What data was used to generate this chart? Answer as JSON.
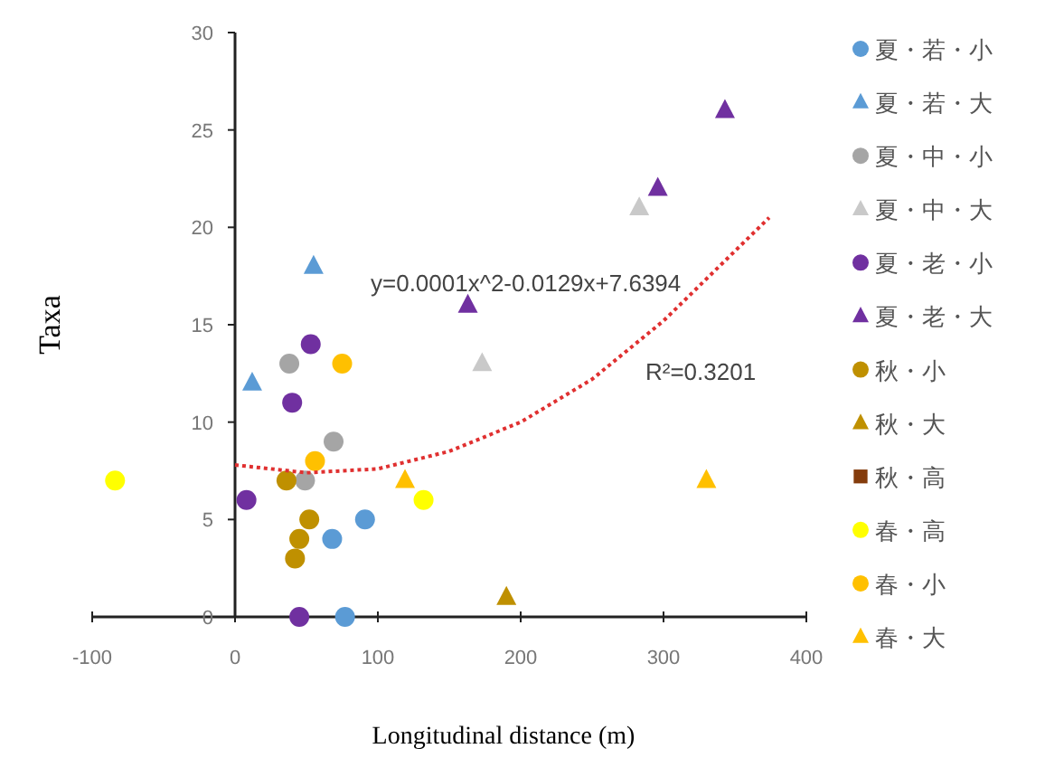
{
  "chart_data": {
    "type": "scatter",
    "xlabel": "Longitudinal distance (m)",
    "ylabel": "Taxa",
    "xlim": [
      -100,
      400
    ],
    "ylim": [
      0,
      30
    ],
    "xticks": [
      -100,
      0,
      100,
      200,
      300,
      400
    ],
    "yticks": [
      0,
      5,
      10,
      15,
      20,
      25,
      30
    ],
    "grid": false,
    "legend": "right",
    "annotations": [
      "y=0.0001x^2-0.0129x+7.6394",
      "R²=0.3201"
    ],
    "series": [
      {
        "name": "夏・若・小",
        "color": "#5b9bd5",
        "marker": "circle",
        "x": [
          91,
          68,
          77
        ],
        "values": [
          5,
          4,
          0
        ]
      },
      {
        "name": "夏・若・大",
        "color": "#5b9bd5",
        "marker": "triangle",
        "x": [
          12,
          55
        ],
        "values": [
          12,
          18
        ]
      },
      {
        "name": "夏・中・小",
        "color": "#a5a5a5",
        "marker": "circle",
        "x": [
          38,
          69,
          49
        ],
        "values": [
          13,
          9,
          7
        ]
      },
      {
        "name": "夏・中・大",
        "color": "#c9c9c9",
        "marker": "triangle",
        "x": [
          173,
          283
        ],
        "values": [
          13,
          21
        ]
      },
      {
        "name": "夏・老・小",
        "color": "#7030a0",
        "marker": "circle",
        "x": [
          53,
          40,
          8,
          45
        ],
        "values": [
          14,
          11,
          6,
          0
        ]
      },
      {
        "name": "夏・老・大",
        "color": "#7030a0",
        "marker": "triangle",
        "x": [
          163,
          296,
          343
        ],
        "values": [
          16,
          22,
          26
        ]
      },
      {
        "name": "秋・小",
        "color": "#bf9000",
        "marker": "circle",
        "x": [
          36,
          52,
          45,
          42
        ],
        "values": [
          7,
          5,
          4,
          3
        ]
      },
      {
        "name": "秋・大",
        "color": "#bf9000",
        "marker": "triangle",
        "x": [
          190
        ],
        "values": [
          1
        ]
      },
      {
        "name": "秋・高",
        "color": "#843c0c",
        "marker": "square"
      },
      {
        "name": "春・高",
        "color": "#ffff00",
        "marker": "circle",
        "x": [
          -84,
          132
        ],
        "values": [
          7,
          6
        ]
      },
      {
        "name": "春・小",
        "color": "#ffc000",
        "marker": "circle",
        "x": [
          75,
          56
        ],
        "values": [
          13,
          8
        ]
      },
      {
        "name": "春・大",
        "color": "#ffc000",
        "marker": "triangle",
        "x": [
          119,
          330
        ],
        "values": [
          7,
          7
        ]
      },
      {
        "type": "line",
        "color": "#e03030",
        "line_style": "dotted",
        "x": [
          0,
          50,
          100,
          150,
          200,
          250,
          300,
          374
        ],
        "values": [
          7.8,
          7.4,
          7.6,
          8.5,
          10.0,
          12.2,
          15.2,
          20.5
        ]
      }
    ]
  }
}
